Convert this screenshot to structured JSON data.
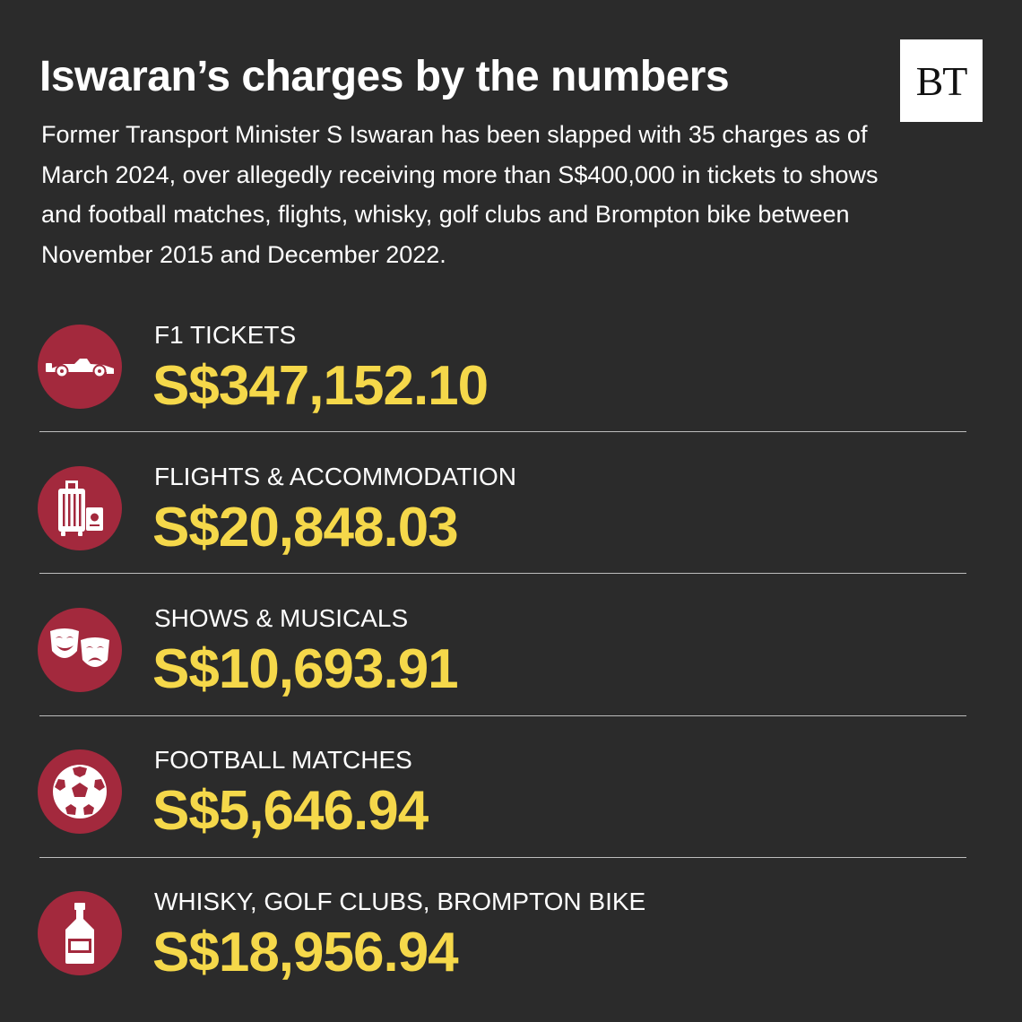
{
  "header": {
    "title": "Iswaran’s charges by the numbers",
    "logo_text": "BT",
    "intro": "Former Transport Minister S Iswaran has been slapped with 35 charges as of March 2024, over allegedly receiving more than S$400,000 in tickets to shows and football matches, flights, whisky, golf clubs and Brompton bike between November 2015 and December 2022."
  },
  "colors": {
    "background": "#2b2b2b",
    "accent_circle": "#a3293d",
    "amount_yellow": "#f5d84a",
    "text": "#ffffff"
  },
  "items": [
    {
      "icon": "race-car-icon",
      "label": "F1 TICKETS",
      "amount": "S$347,152.10"
    },
    {
      "icon": "luggage-icon",
      "label": "FLIGHTS & ACCOMMODATION",
      "amount": "S$20,848.03"
    },
    {
      "icon": "theatre-masks-icon",
      "label": "SHOWS & MUSICALS",
      "amount": "S$10,693.91"
    },
    {
      "icon": "football-icon",
      "label": "FOOTBALL MATCHES",
      "amount": "S$5,646.94"
    },
    {
      "icon": "whisky-bottle-icon",
      "label": "WHISKY, GOLF CLUBS, BROMPTON BIKE",
      "amount": "S$18,956.94"
    }
  ]
}
